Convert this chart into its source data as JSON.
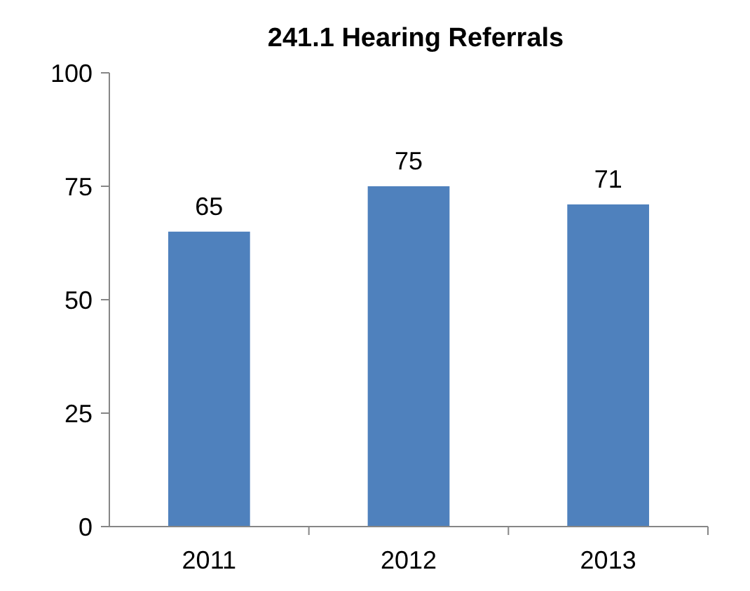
{
  "chart_data": {
    "type": "bar",
    "title": "241.1 Hearing Referrals",
    "categories": [
      "2011",
      "2012",
      "2013"
    ],
    "values": [
      65,
      75,
      71
    ],
    "color": "#4f81bd",
    "ylim": [
      0,
      100
    ],
    "yticks": [
      0,
      25,
      50,
      75,
      100
    ],
    "data_labels": true,
    "grid": false
  }
}
